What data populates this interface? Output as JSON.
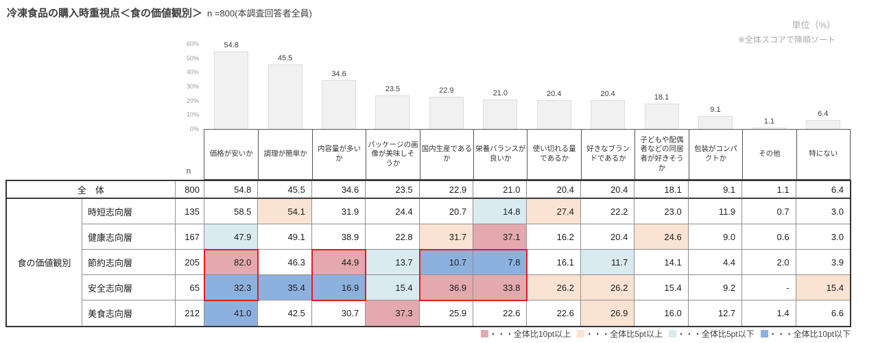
{
  "title": "冷凍食品の購入時重視点＜食の価値観別＞",
  "subtitle": "n =800(本調査回答者全員)",
  "unit_note": "単位（%）",
  "sort_note": "※全体スコアで降順ソート",
  "chart_data": {
    "type": "bar",
    "title": "冷凍食品の購入時重視点＜食の価値観別＞",
    "categories": [
      "価格が安いか",
      "調理が簡単か",
      "内容量が多いか",
      "パッケージの画像が美味しそうか",
      "国内生産であるか",
      "栄養バランスが良いか",
      "使い切れる量であるか",
      "好きなブランドであるか",
      "子どもや配偶者などの同居者が好きそうか",
      "包装がコンパクトか",
      "その他",
      "特にない"
    ],
    "values": [
      54.8,
      45.5,
      34.6,
      23.5,
      22.9,
      21.0,
      20.4,
      20.4,
      18.1,
      9.1,
      1.1,
      6.4
    ],
    "ylabel": "%",
    "ylim": [
      0,
      60
    ],
    "yticks": [
      "0%",
      "10%",
      "20%",
      "30%",
      "40%",
      "50%",
      "60%"
    ],
    "grid": false,
    "bar_color": "#f1f1f1"
  },
  "table": {
    "n_label": "n",
    "group_label": "食の価値観別",
    "columns": [
      "価格が安いか",
      "調理が簡単か",
      "内容量が多いか",
      "パッケージの画像が美味しそうか",
      "国内生産であるか",
      "栄養バランスが良いか",
      "使い切れる量であるか",
      "好きなブランドであるか",
      "子どもや配偶者などの同居者が好きそうか",
      "包装がコンパクトか",
      "その他",
      "特にない"
    ],
    "rows": [
      {
        "label": "全　体",
        "n": "800",
        "values": [
          "54.8",
          "45.5",
          "34.6",
          "23.5",
          "22.9",
          "21.0",
          "20.4",
          "20.4",
          "18.1",
          "9.1",
          "1.1",
          "6.4"
        ],
        "colors": [
          "",
          "",
          "",
          "",
          "",
          "",
          "",
          "",
          "",
          "",
          "",
          ""
        ]
      },
      {
        "label": "時短志向層",
        "n": "135",
        "values": [
          "58.5",
          "54.1",
          "31.9",
          "24.4",
          "20.7",
          "14.8",
          "27.4",
          "22.2",
          "23.0",
          "11.9",
          "0.7",
          "3.0"
        ],
        "colors": [
          "",
          "p5",
          "",
          "",
          "",
          "m5",
          "p5",
          "",
          "",
          "",
          "",
          ""
        ]
      },
      {
        "label": "健康志向層",
        "n": "167",
        "values": [
          "47.9",
          "49.1",
          "38.9",
          "22.8",
          "31.7",
          "37.1",
          "16.2",
          "20.4",
          "24.6",
          "9.0",
          "0.6",
          "3.0"
        ],
        "colors": [
          "m5",
          "",
          "",
          "",
          "p5",
          "p10",
          "",
          "",
          "p5",
          "",
          "",
          ""
        ]
      },
      {
        "label": "節約志向層",
        "n": "205",
        "values": [
          "82.0",
          "46.3",
          "44.9",
          "13.7",
          "10.7",
          "7.8",
          "16.1",
          "11.7",
          "14.1",
          "4.4",
          "2.0",
          "3.9"
        ],
        "colors": [
          "p10",
          "",
          "p10",
          "m5",
          "m10",
          "m10",
          "",
          "m5",
          "",
          "",
          "",
          ""
        ]
      },
      {
        "label": "安全志向層",
        "n": "65",
        "values": [
          "32.3",
          "35.4",
          "16.9",
          "15.4",
          "36.9",
          "33.8",
          "26.2",
          "26.2",
          "15.4",
          "9.2",
          "-",
          "15.4"
        ],
        "colors": [
          "m10",
          "m10",
          "m10",
          "m5",
          "p10",
          "p10",
          "p5",
          "p5",
          "",
          "",
          "",
          "p5"
        ]
      },
      {
        "label": "美食志向層",
        "n": "212",
        "values": [
          "41.0",
          "42.5",
          "30.7",
          "37.3",
          "25.9",
          "22.6",
          "22.6",
          "26.9",
          "16.0",
          "12.7",
          "1.4",
          "6.6"
        ],
        "colors": [
          "m10",
          "",
          "",
          "p10",
          "",
          "",
          "",
          "p5",
          "",
          "",
          "",
          ""
        ]
      }
    ],
    "highlight_boxes": [
      {
        "row_start": 4,
        "row_end": 6,
        "col_start": 4,
        "col_end": 5
      },
      {
        "row_start": 4,
        "row_end": 6,
        "col_start": 6,
        "col_end": 7
      },
      {
        "row_start": 4,
        "row_end": 6,
        "col_start": 8,
        "col_end": 10
      }
    ]
  },
  "colors": {
    "p10": "#e3a9ae",
    "p5": "#fae3d2",
    "m5": "#d9eaf1",
    "m10": "#8db1df",
    "highlight_border": "#e01d20"
  },
  "legend": [
    {
      "color_key": "p10",
      "label": "・・・全体比10pt以上"
    },
    {
      "color_key": "p5",
      "label": "・・・全体比5pt以上"
    },
    {
      "color_key": "m5",
      "label": "・・・全体比5pt以下"
    },
    {
      "color_key": "m10",
      "label": "・・・全体比10pt以下"
    }
  ]
}
